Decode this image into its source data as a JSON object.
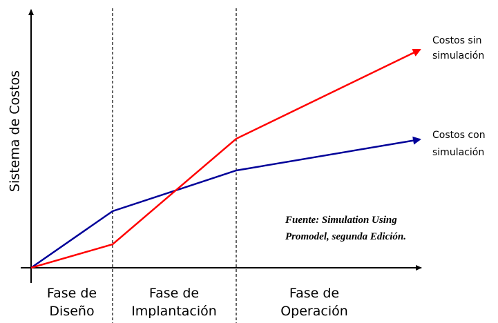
{
  "axis_label": "Sistema de Costos",
  "phases": [
    {
      "lines": [
        "Fase de",
        "Diseño"
      ]
    },
    {
      "lines": [
        "Fase de",
        "Implantación"
      ]
    },
    {
      "lines": [
        "Fase de",
        "Operación"
      ]
    }
  ],
  "series_labels": [
    {
      "lines": [
        "Costos sin",
        "simulación"
      ]
    },
    {
      "lines": [
        "Costos con",
        "simulación"
      ]
    }
  ],
  "source": {
    "lines": [
      "Fuente: Simulation Using",
      "Promodel, segunda Edición."
    ]
  }
}
